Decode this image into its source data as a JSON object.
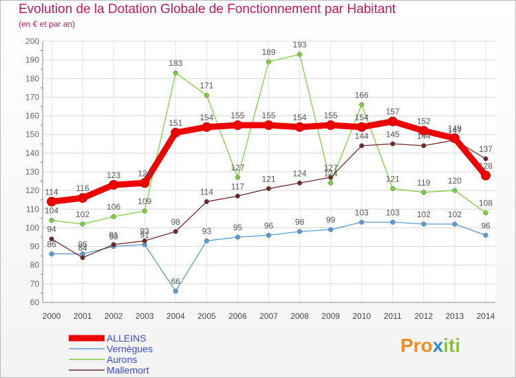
{
  "chart_data": {
    "type": "line",
    "title": "Evolution de la Dotation Globale de Fonctionnement par Habitant",
    "subtitle": "(en € et par an)",
    "xlabel": "",
    "ylabel": "",
    "ylim": [
      60,
      200
    ],
    "yticks": [
      60,
      70,
      80,
      90,
      100,
      110,
      120,
      130,
      140,
      150,
      160,
      170,
      180,
      190,
      200
    ],
    "categories": [
      "2000",
      "2001",
      "2002",
      "2003",
      "2004",
      "2005",
      "2006",
      "2007",
      "2008",
      "2009",
      "2010",
      "2011",
      "2012",
      "2013",
      "2014"
    ],
    "series": [
      {
        "name": "ALLEINS",
        "color": "#ee0000",
        "values": [
          114,
          116,
          123,
          124,
          151,
          154,
          155,
          155,
          154,
          155,
          154,
          157,
          152,
          148,
          128
        ]
      },
      {
        "name": "Vernègues",
        "color": "#5b9bd5",
        "values": [
          86,
          86,
          90,
          91,
          66,
          93,
          95,
          96,
          98,
          99,
          103,
          103,
          102,
          102,
          96
        ]
      },
      {
        "name": "Aurons",
        "color": "#7dd23c",
        "values": [
          104,
          102,
          106,
          109,
          183,
          171,
          127,
          189,
          193,
          124,
          166,
          121,
          119,
          120,
          108
        ]
      },
      {
        "name": "Mallemort",
        "color": "#6e2828",
        "values": [
          94,
          84,
          91,
          93,
          98,
          114,
          117,
          121,
          124,
          127,
          144,
          145,
          144,
          147,
          137
        ]
      }
    ],
    "legend_position": "bottom-left"
  },
  "logo": {
    "parts": [
      "Pro",
      "x",
      "iti"
    ],
    "colors": [
      "#f28c1f",
      "#2b8fd6",
      "#8bc33f"
    ]
  }
}
